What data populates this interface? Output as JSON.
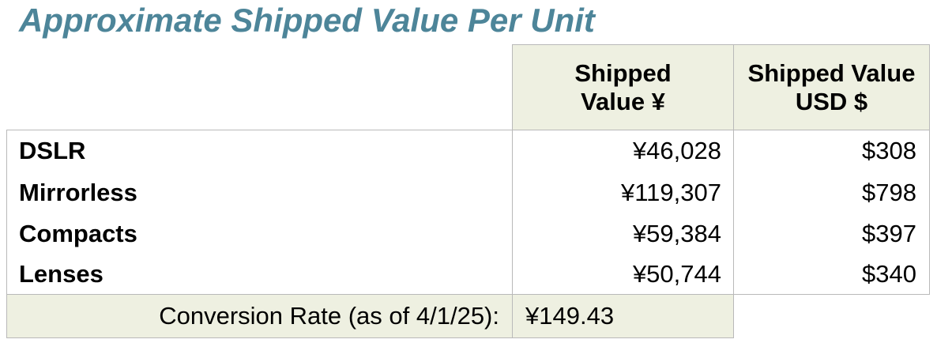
{
  "title": "Approximate Shipped Value Per Unit",
  "table": {
    "headers": [
      "Shipped Value ¥",
      "Shipped Value USD $"
    ],
    "rows": [
      [
        "DSLR",
        "¥46,028",
        "$308"
      ],
      [
        "Mirrorless",
        "¥119,307",
        "$798"
      ],
      [
        "Compacts",
        "¥59,384",
        "$397"
      ],
      [
        "Lenses",
        "¥50,744",
        "$340"
      ]
    ],
    "footer": {
      "label": "Conversion Rate (as of 4/1/25):",
      "value": "¥149.43"
    }
  }
}
